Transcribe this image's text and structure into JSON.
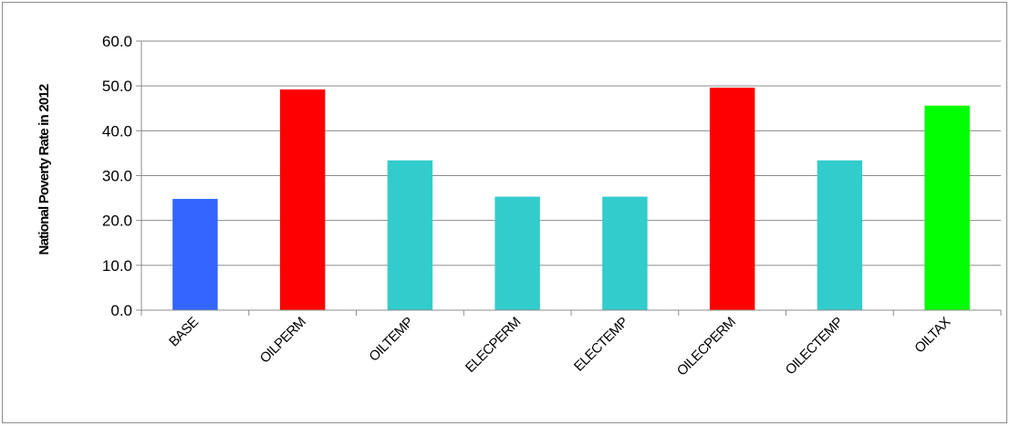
{
  "chart_data": {
    "type": "bar",
    "title": "",
    "xlabel": "",
    "ylabel": "National Poverty Rate in 2012",
    "categories": [
      "BASE",
      "OILPERM",
      "OILTEMP",
      "ELECPERM",
      "ELECTEMP",
      "OILECPERM",
      "OILECTEMP",
      "OILTAX"
    ],
    "values": [
      24.8,
      49.2,
      33.4,
      25.3,
      25.3,
      49.6,
      33.4,
      45.6
    ],
    "colors": [
      "#3366ff",
      "#ff0000",
      "#33cccc",
      "#33cccc",
      "#33cccc",
      "#ff0000",
      "#33cccc",
      "#00ff00"
    ],
    "ylim": [
      0,
      60
    ],
    "yticks": [
      "0.0",
      "10.0",
      "20.0",
      "30.0",
      "40.0",
      "50.0",
      "60.0"
    ],
    "grid": true,
    "legend": "none"
  }
}
